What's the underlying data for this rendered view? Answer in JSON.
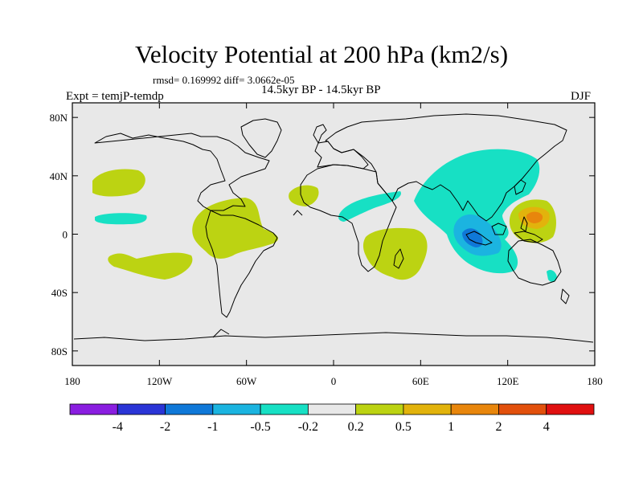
{
  "chart_data": {
    "type": "contour-map",
    "title": "Velocity Potential at 200 hPa (km2/s)",
    "stats": "rmsd= 0.169992 diff= 3.0662e-05",
    "experiment": "Expt = temjP-temdp",
    "center_string": "14.5kyr BP - 14.5kyr BP",
    "season": "DJF",
    "background_color": "#e8e8e8",
    "x_ticks": [
      "180",
      "120W",
      "60W",
      "0",
      "60E",
      "120E",
      "180"
    ],
    "y_ticks": [
      "80N",
      "40N",
      "0",
      "40S",
      "80S"
    ],
    "xlim": [
      -180,
      180
    ],
    "ylim": [
      -90,
      90
    ],
    "levels": [
      "-4",
      "-2",
      "-1",
      "-0.5",
      "-0.2",
      "0.2",
      "0.5",
      "1",
      "2",
      "4"
    ],
    "colors": [
      "#8a1ee0",
      "#2a35d6",
      "#0f78d8",
      "#1bb4e0",
      "#17e0c4",
      "#e8e8e8",
      "#bcd312",
      "#e2b30c",
      "#e8860c",
      "#e2500c",
      "#e01010"
    ],
    "regions": [
      {
        "name": "north-pacific-positive",
        "value": "0.2 to 0.5",
        "color": "#bcd312"
      },
      {
        "name": "tropical-pacific-negative",
        "value": "-0.5 to -0.2",
        "color": "#17e0c4"
      },
      {
        "name": "south-america-positive",
        "value": "0.2 to 0.5",
        "color": "#bcd312"
      },
      {
        "name": "south-pacific-positive",
        "value": "0.2 to 0.5",
        "color": "#bcd312"
      },
      {
        "name": "west-africa-positive",
        "value": "0.2 to 0.5",
        "color": "#bcd312"
      },
      {
        "name": "africa-negative",
        "value": "-0.5 to -0.2",
        "color": "#17e0c4"
      },
      {
        "name": "southern-africa-positive",
        "value": "0.2 to 0.5",
        "color": "#bcd312"
      },
      {
        "name": "asia-negative",
        "value": "-0.5 to -0.2",
        "color": "#17e0c4"
      },
      {
        "name": "maritime-continent-negative",
        "value": "-1 to -0.5",
        "color": "#1bb4e0"
      },
      {
        "name": "maritime-continent-core",
        "value": "-2 to -1",
        "color": "#0f78d8"
      },
      {
        "name": "west-pacific-positive",
        "value": "0.2 to 0.5",
        "color": "#bcd312"
      },
      {
        "name": "west-pacific-mid",
        "value": "0.5 to 1",
        "color": "#e2b30c"
      },
      {
        "name": "west-pacific-core",
        "value": "1 to 2",
        "color": "#e8860c"
      },
      {
        "name": "australia-negative",
        "value": "-0.5 to -0.2",
        "color": "#17e0c4"
      }
    ]
  }
}
